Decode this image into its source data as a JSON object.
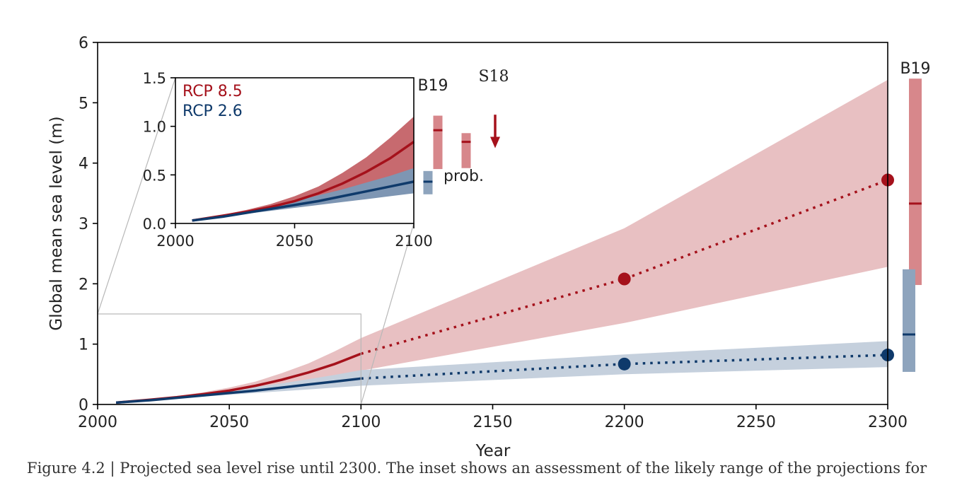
{
  "colors": {
    "rcp85": "#a5111b",
    "rcp85_band": "#e8c0c2",
    "rcp85_band_inset": "#c76a6f",
    "rcp85_bar": "#d7878b",
    "rcp26": "#0f3a6b",
    "rcp26_band": "#c5d0dd",
    "rcp26_band_inset": "#7e96b3",
    "rcp26_bar": "#8ea4bd"
  },
  "chart_data": {
    "type": "line",
    "xlabel": "Year",
    "ylabel": "Global mean sea level (m)",
    "xlim": [
      2000,
      2300
    ],
    "ylim": [
      0,
      6
    ],
    "xticks": [
      "2000",
      "2050",
      "2100",
      "2150",
      "2200",
      "2250",
      "2300"
    ],
    "yticks": [
      "0",
      "1",
      "2",
      "3",
      "4",
      "5",
      "6"
    ],
    "zoom_box": {
      "x": [
        2000,
        2100
      ],
      "y": [
        0,
        1.5
      ]
    },
    "series": [
      {
        "name": "RCP 8.5",
        "color_key": "rcp85",
        "x": [
          2007,
          2020,
          2030,
          2040,
          2050,
          2060,
          2070,
          2080,
          2090,
          2100
        ],
        "values": [
          0.03,
          0.08,
          0.12,
          0.17,
          0.23,
          0.31,
          0.41,
          0.53,
          0.67,
          0.84
        ],
        "band_low": [
          0.03,
          0.07,
          0.1,
          0.14,
          0.18,
          0.23,
          0.29,
          0.37,
          0.46,
          0.56
        ],
        "band_high": [
          0.03,
          0.09,
          0.14,
          0.2,
          0.28,
          0.38,
          0.52,
          0.68,
          0.88,
          1.1
        ],
        "ext_x": [
          2100,
          2200,
          2300
        ],
        "ext_values": [
          0.84,
          2.08,
          3.72
        ],
        "ext_low": [
          0.61,
          1.35,
          2.28
        ],
        "ext_high": [
          1.1,
          2.92,
          5.38
        ],
        "markers": [
          [
            2200,
            2.08
          ],
          [
            2300,
            3.72
          ]
        ]
      },
      {
        "name": "RCP 2.6",
        "color_key": "rcp26",
        "x": [
          2007,
          2020,
          2030,
          2040,
          2050,
          2060,
          2070,
          2080,
          2090,
          2100
        ],
        "values": [
          0.03,
          0.07,
          0.11,
          0.15,
          0.19,
          0.23,
          0.28,
          0.33,
          0.38,
          0.43
        ],
        "band_low": [
          0.03,
          0.065,
          0.1,
          0.13,
          0.16,
          0.19,
          0.22,
          0.25,
          0.28,
          0.31
        ],
        "band_high": [
          0.03,
          0.08,
          0.12,
          0.17,
          0.23,
          0.29,
          0.35,
          0.42,
          0.49,
          0.57
        ],
        "ext_x": [
          2100,
          2200,
          2300
        ],
        "ext_values": [
          0.43,
          0.67,
          0.82
        ],
        "ext_low": [
          0.33,
          0.5,
          0.62
        ],
        "ext_high": [
          0.57,
          0.83,
          1.05
        ],
        "markers": [
          [
            2200,
            0.67
          ],
          [
            2300,
            0.82
          ]
        ]
      }
    ],
    "b19_2300": [
      {
        "series": "RCP 8.5",
        "low": 1.98,
        "median": 3.33,
        "high": 5.4
      },
      {
        "series": "RCP 2.6",
        "low": 0.54,
        "median": 1.16,
        "high": 2.24
      }
    ],
    "inset": {
      "xlim": [
        2000,
        2100
      ],
      "ylim": [
        0,
        1.5
      ],
      "xticks": [
        "2000",
        "2050",
        "2100"
      ],
      "yticks": [
        "0.0",
        "0.5",
        "1.0",
        "1.5"
      ],
      "legend": [
        "RCP 8.5",
        "RCP 2.6"
      ],
      "b19_label": "B19",
      "s18_label": "S18",
      "prob_label": "prob.",
      "b19_2100": {
        "low": 0.56,
        "median": 0.96,
        "high": 1.11
      },
      "rcp85_range_2100": {
        "low": 0.57,
        "median": 0.84,
        "high": 0.93
      },
      "rcp26_prob_2100": {
        "low": 0.3,
        "median": 0.43,
        "high": 0.54
      },
      "s18_2100_arrow": {
        "from": 1.12,
        "to": 0.79
      }
    },
    "b19_label": "B19"
  },
  "caption": "Figure 4.2 | Projected sea level rise until 2300. The inset shows an assessment of the likely range of the projections for"
}
